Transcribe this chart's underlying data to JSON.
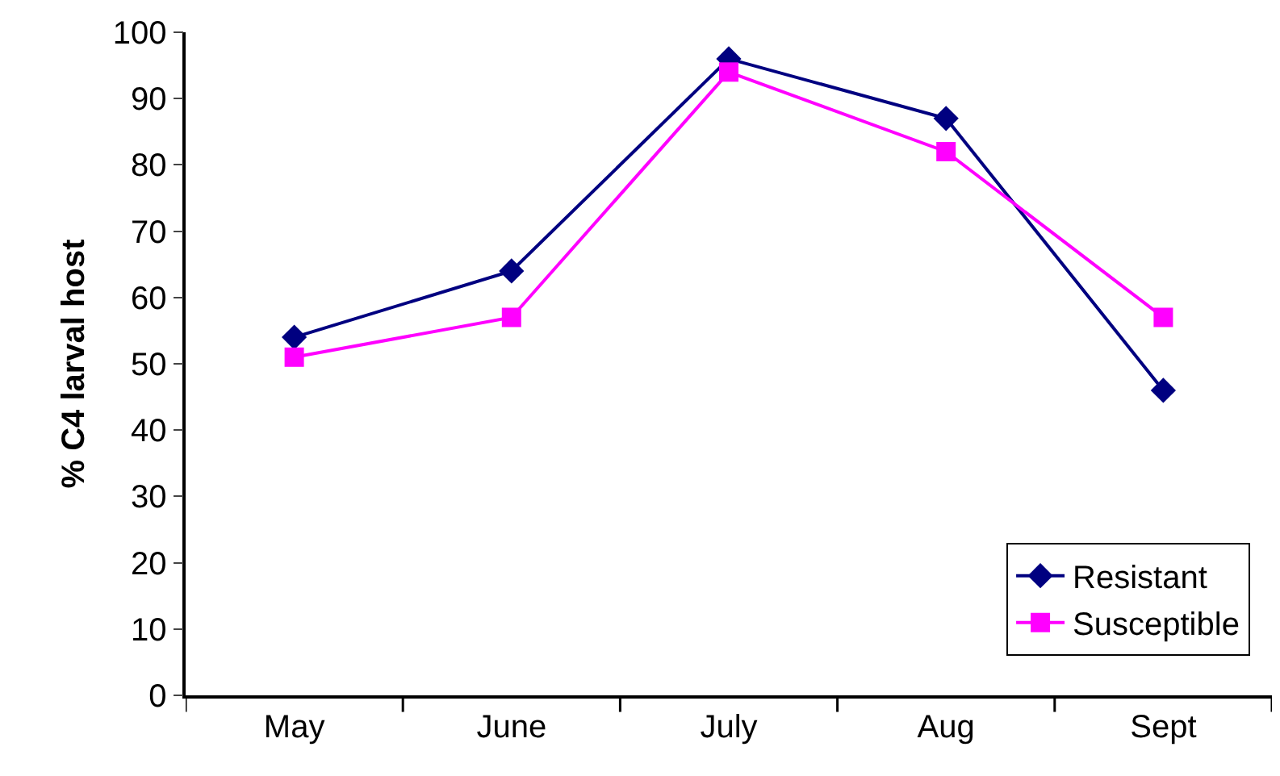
{
  "chart_data": {
    "type": "line",
    "ylabel": "% C4 larval host",
    "categories": [
      "May",
      "June",
      "July",
      "Aug",
      "Sept"
    ],
    "series": [
      {
        "name": "Resistant",
        "color": "#000080",
        "marker": "diamond",
        "values": [
          54,
          64,
          96,
          87,
          46
        ]
      },
      {
        "name": "Susceptible",
        "color": "#ff00ff",
        "marker": "square",
        "values": [
          51,
          57,
          94,
          82,
          57
        ]
      }
    ],
    "ylim": [
      0,
      100
    ],
    "yticks": [
      0,
      10,
      20,
      30,
      40,
      50,
      60,
      70,
      80,
      90,
      100
    ],
    "legend": "bottom right",
    "line_style": "solid"
  }
}
